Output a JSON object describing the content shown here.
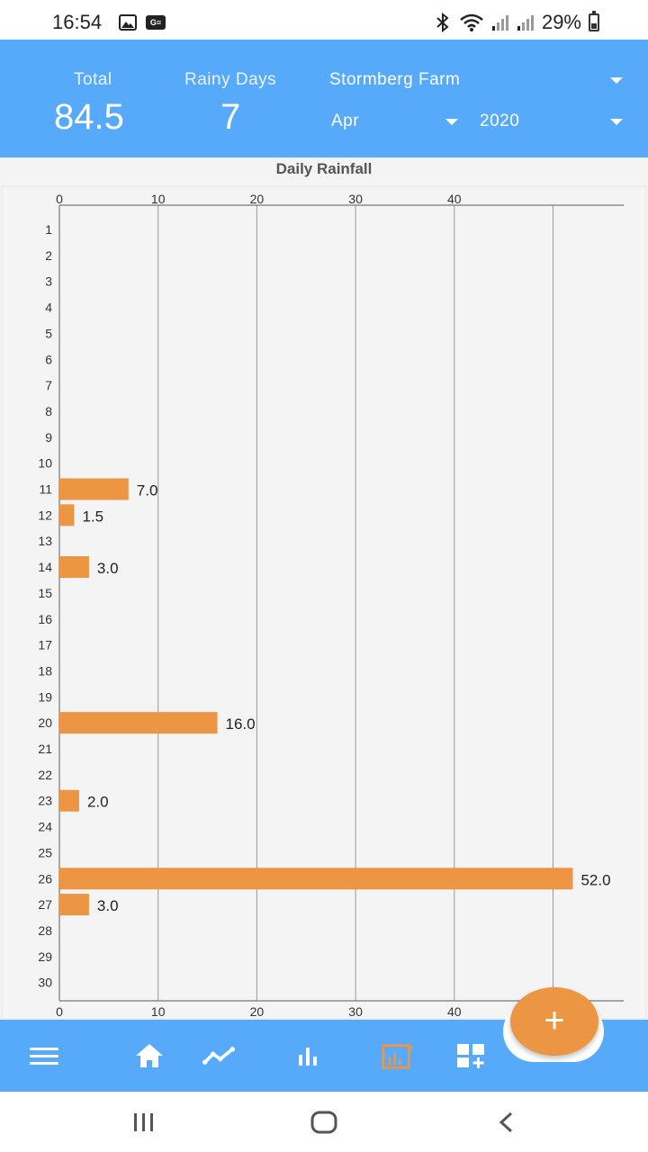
{
  "status_bar": {
    "time": "16:54",
    "battery": "29%",
    "icons": [
      "gallery-icon",
      "gs-notification-icon",
      "bluetooth-icon",
      "wifi-icon",
      "signal-icon",
      "battery-icon"
    ]
  },
  "header": {
    "total_label": "Total",
    "total_value": "84.5",
    "rainy_days_label": "Rainy Days",
    "rainy_days_value": "7",
    "farm": "Stormberg Farm",
    "month": "Apr",
    "year": "2020"
  },
  "chart_data": {
    "type": "bar",
    "orientation": "horizontal",
    "title": "Daily Rainfall",
    "categories": [
      "1",
      "2",
      "3",
      "4",
      "5",
      "6",
      "7",
      "8",
      "9",
      "10",
      "11",
      "12",
      "13",
      "14",
      "15",
      "16",
      "17",
      "18",
      "19",
      "20",
      "21",
      "22",
      "23",
      "24",
      "25",
      "26",
      "27",
      "28",
      "29",
      "30"
    ],
    "values": [
      0,
      0,
      0,
      0,
      0,
      0,
      0,
      0,
      0,
      0,
      7.0,
      1.5,
      0,
      3.0,
      0,
      0,
      0,
      0,
      0,
      16.0,
      0,
      0,
      2.0,
      0,
      0,
      52.0,
      3.0,
      0,
      0,
      0
    ],
    "labels": [
      "",
      "",
      "",
      "",
      "",
      "",
      "",
      "",
      "",
      "",
      "7.0",
      "1.5",
      "",
      "3.0",
      "",
      "",
      "",
      "",
      "",
      "16.0",
      "",
      "",
      "2.0",
      "",
      "",
      "52.0",
      "3.0",
      "",
      "",
      ""
    ],
    "xticks": [
      "0",
      "10",
      "20",
      "30",
      "40"
    ],
    "xlim": [
      0,
      57
    ],
    "grid": true,
    "bar_color": "#ec9542"
  },
  "bottom_nav": {
    "items": [
      "menu-icon",
      "home-icon",
      "trend-icon",
      "bar-chart-icon",
      "daily-chart-icon",
      "add-widget-icon"
    ],
    "active": "daily-chart-icon",
    "fab_label": "+",
    "accent": "#57aafa",
    "active_color": "#ec9542"
  },
  "system_nav": [
    "recent-apps-icon",
    "home-circle-icon",
    "back-icon"
  ]
}
